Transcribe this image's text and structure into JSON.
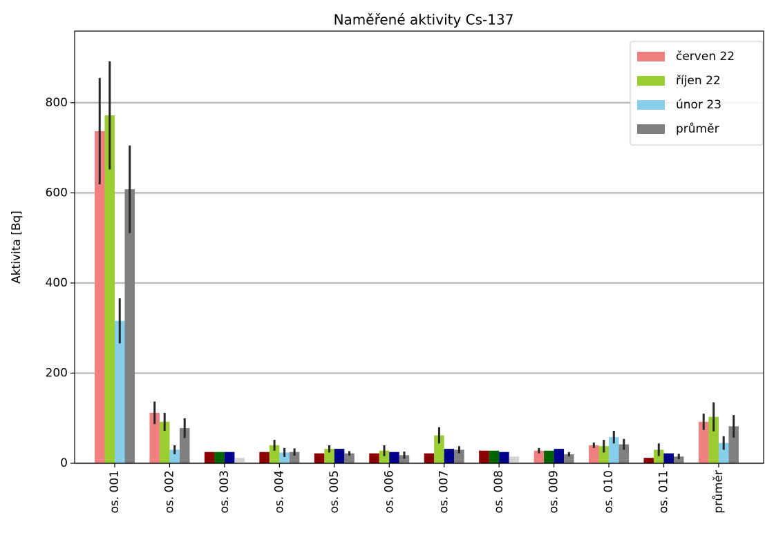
{
  "chart_data": {
    "type": "bar",
    "title": "Naměřené aktivity Cs-137",
    "y_label": "Aktivita [Bq]",
    "categories": [
      "os. 001",
      "os. 002",
      "os. 003",
      "os. 004",
      "os. 005",
      "os. 006",
      "os. 007",
      "os. 008",
      "os. 009",
      "os. 010",
      "os. 011",
      "průměr"
    ],
    "series": [
      {
        "name": "červen 22",
        "color": "#f08080",
        "colors": [
          "#f08080",
          "#f08080",
          "#8b0000",
          "#8b0000",
          "#8b0000",
          "#8b0000",
          "#8b0000",
          "#8b0000",
          "#f08080",
          "#f08080",
          "#8b0000",
          "#f08080"
        ],
        "values": [
          737,
          112,
          25,
          25,
          22,
          22,
          22,
          28,
          28,
          40,
          12,
          92
        ],
        "errors": [
          118,
          25,
          null,
          null,
          null,
          null,
          null,
          null,
          6,
          6,
          null,
          18
        ]
      },
      {
        "name": "říjen 22",
        "color": "#9acd32",
        "colors": [
          "#9acd32",
          "#9acd32",
          "#006400",
          "#9acd32",
          "#9acd32",
          "#9acd32",
          "#9acd32",
          "#006400",
          "#006400",
          "#9acd32",
          "#9acd32",
          "#9acd32"
        ],
        "values": [
          772,
          92,
          25,
          40,
          32,
          28,
          62,
          28,
          28,
          38,
          30,
          103
        ],
        "errors": [
          120,
          20,
          null,
          12,
          8,
          12,
          18,
          null,
          null,
          14,
          14,
          32
        ]
      },
      {
        "name": "únor 23",
        "color": "#87ceeb",
        "colors": [
          "#87ceeb",
          "#87ceeb",
          "#00008b",
          "#87ceeb",
          "#00008b",
          "#00008b",
          "#00008b",
          "#00008b",
          "#00008b",
          "#87ceeb",
          "#00008b",
          "#87ceeb"
        ],
        "values": [
          316,
          30,
          25,
          24,
          32,
          25,
          32,
          25,
          32,
          58,
          22,
          45
        ],
        "errors": [
          50,
          10,
          null,
          10,
          null,
          null,
          null,
          null,
          null,
          14,
          null,
          15
        ]
      },
      {
        "name": "průměr",
        "color": "#808080",
        "colors": [
          "#808080",
          "#808080",
          "#d3d3d3",
          "#808080",
          "#808080",
          "#808080",
          "#808080",
          "#d3d3d3",
          "#808080",
          "#808080",
          "#808080",
          "#808080"
        ],
        "values": [
          608,
          78,
          12,
          25,
          22,
          18,
          30,
          15,
          20,
          42,
          15,
          82
        ],
        "errors": [
          97,
          22,
          null,
          8,
          5,
          8,
          8,
          null,
          5,
          12,
          6,
          25
        ]
      }
    ],
    "ylim": [
      0,
      959
    ],
    "yticks": [
      0,
      200,
      400,
      600,
      800
    ],
    "grid": true,
    "legend": "upper right"
  }
}
